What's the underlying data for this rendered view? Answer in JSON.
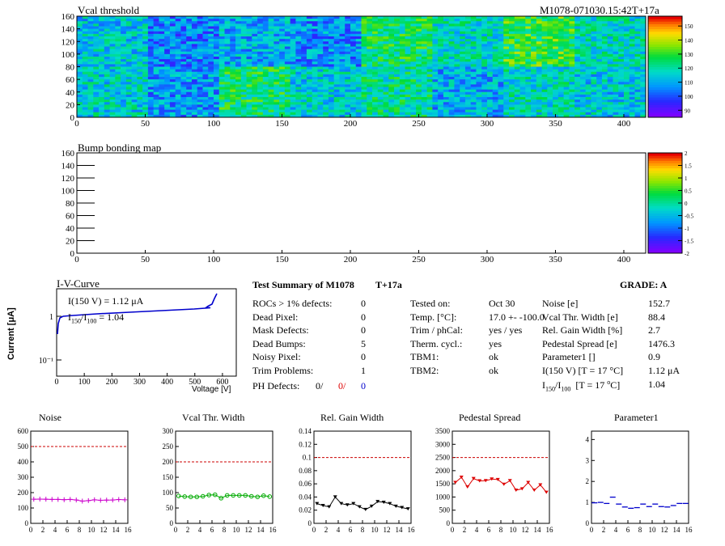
{
  "header": {
    "title": "Vcal threshold",
    "module_id": "M1078-071030.15:42T+17a"
  },
  "bump_title": "Bump bonding map",
  "vcal_map": {
    "x_ticks": [
      "0",
      "50",
      "100",
      "150",
      "200",
      "250",
      "300",
      "350",
      "400"
    ],
    "y_ticks": [
      "0",
      "20",
      "40",
      "60",
      "80",
      "100",
      "120",
      "140",
      "160"
    ],
    "colorbar_ticks": [
      "90",
      "100",
      "110",
      "120",
      "130",
      "140",
      "150"
    ],
    "xlim": [
      0,
      416
    ],
    "ylim": [
      0,
      160
    ]
  },
  "bump_map": {
    "x_ticks": [
      "0",
      "50",
      "100",
      "150",
      "200",
      "250",
      "300",
      "350",
      "400"
    ],
    "y_ticks": [
      "0",
      "20",
      "40",
      "60",
      "80",
      "100",
      "120",
      "140",
      "160"
    ],
    "colorbar_ticks": [
      "-2",
      "-1.5",
      "-1",
      "-0.5",
      "0",
      "0.5",
      "1",
      "1.5",
      "2"
    ]
  },
  "iv": {
    "title": "I-V-Curve",
    "ylabel": "Current [μA]",
    "xlabel": "Voltage [V]",
    "x_ticks": [
      "0",
      "100",
      "200",
      "300",
      "400",
      "500",
      "600"
    ],
    "y_ticks": [
      "10⁻¹",
      "1"
    ],
    "ann1": "I(150 V) = 1.12 μA",
    "ann2_a": "I",
    "ann2_sub1": "150",
    "ann2_b": "/I",
    "ann2_sub2": "100",
    "ann2_c": " =  1.04"
  },
  "summary": {
    "title": "Test Summary of M1078",
    "subtitle": "T+17a",
    "grade": "GRADE:  A",
    "left": [
      {
        "label": "ROCs > 1% defects:",
        "value": "0"
      },
      {
        "label": "Dead Pixel:",
        "value": "0"
      },
      {
        "label": "Mask Defects:",
        "value": "0"
      },
      {
        "label": "Dead Bumps:",
        "value": "5"
      },
      {
        "label": "Noisy Pixel:",
        "value": "0"
      },
      {
        "label": "Trim Problems:",
        "value": "1"
      }
    ],
    "ph_label": "PH Defects:",
    "ph_values": [
      "0/",
      "0/",
      "0"
    ],
    "mid": [
      {
        "label": "Tested on:",
        "value": "Oct 30"
      },
      {
        "label": "Temp. [°C]:",
        "value": "17.0 +- -100.0"
      },
      {
        "label": "Trim / phCal:",
        "value": "yes / yes"
      },
      {
        "label": "Therm. cycl.:",
        "value": "yes"
      },
      {
        "label": "TBM1:",
        "value": "ok"
      },
      {
        "label": "TBM2:",
        "value": "ok"
      }
    ],
    "right": [
      {
        "label": "Noise [e]",
        "value": "152.7"
      },
      {
        "label": "Vcal Thr. Width [e]",
        "value": "88.4"
      },
      {
        "label": "Rel. Gain Width [%]",
        "value": "2.7"
      },
      {
        "label": "Pedestal Spread [e]",
        "value": "1476.3"
      },
      {
        "label": "Parameter1 []",
        "value": "0.9"
      },
      {
        "label": "I(150 V) [T = 17 °C]",
        "value": "1.12 μA"
      }
    ],
    "ratio_label": "I150/I100  [T = 17 °C]",
    "ratio_value": "1.04"
  },
  "chart_data": [
    {
      "type": "line",
      "title": "Noise",
      "color": "#cc00cc",
      "marker": "plus",
      "ylim": [
        0,
        600
      ],
      "y_ticks": [
        "0",
        "100",
        "200",
        "300",
        "400",
        "500",
        "600"
      ],
      "limit": 500,
      "x": [
        0,
        1,
        2,
        3,
        4,
        5,
        6,
        7,
        8,
        9,
        10,
        11,
        12,
        13,
        14,
        15
      ],
      "values": [
        157,
        158,
        157,
        156,
        156,
        154,
        156,
        152,
        145,
        148,
        153,
        150,
        151,
        152,
        155,
        153
      ]
    },
    {
      "type": "line",
      "title": "Vcal Thr. Width",
      "color": "#00aa00",
      "marker": "circle",
      "ylim": [
        0,
        300
      ],
      "y_ticks": [
        "0",
        "50",
        "100",
        "150",
        "200",
        "250",
        "300"
      ],
      "limit": 200,
      "x": [
        0,
        1,
        2,
        3,
        4,
        5,
        6,
        7,
        8,
        9,
        10,
        11,
        12,
        13,
        14,
        15
      ],
      "values": [
        89,
        87,
        86,
        86,
        88,
        92,
        93,
        82,
        91,
        91,
        91,
        91,
        88,
        86,
        90,
        87
      ]
    },
    {
      "type": "line",
      "title": "Rel. Gain Width",
      "color": "#000000",
      "marker": "triangle",
      "ylim": [
        0,
        0.14
      ],
      "y_ticks": [
        "0",
        "0.02",
        "0.04",
        "0.06",
        "0.08",
        "0.1",
        "0.12",
        "0.14"
      ],
      "limit": 0.1,
      "x": [
        0,
        1,
        2,
        3,
        4,
        5,
        6,
        7,
        8,
        9,
        10,
        11,
        12,
        13,
        14,
        15
      ],
      "values": [
        0.03,
        0.027,
        0.025,
        0.04,
        0.03,
        0.028,
        0.03,
        0.025,
        0.021,
        0.026,
        0.033,
        0.032,
        0.03,
        0.026,
        0.024,
        0.022
      ]
    },
    {
      "type": "line",
      "title": "Pedestal Spread",
      "color": "#dd0000",
      "marker": "triangle",
      "ylim": [
        0,
        3500
      ],
      "y_ticks": [
        "0",
        "500",
        "1000",
        "1500",
        "2000",
        "2500",
        "3000",
        "3500"
      ],
      "limit": 2500,
      "x": [
        0,
        1,
        2,
        3,
        4,
        5,
        6,
        7,
        8,
        9,
        10,
        11,
        12,
        13,
        14,
        15
      ],
      "values": [
        1550,
        1750,
        1380,
        1700,
        1610,
        1620,
        1680,
        1660,
        1480,
        1620,
        1260,
        1310,
        1550,
        1260,
        1460,
        1180
      ]
    },
    {
      "type": "scatter",
      "title": "Parameter1",
      "color": "#0000cc",
      "marker": "dash",
      "ylim": [
        0,
        4.4
      ],
      "y_ticks": [
        "0",
        "1",
        "2",
        "3",
        "4"
      ],
      "x": [
        0,
        1,
        2,
        3,
        4,
        5,
        6,
        7,
        8,
        9,
        10,
        11,
        12,
        13,
        14,
        15
      ],
      "values": [
        0.98,
        1.0,
        0.95,
        1.25,
        0.92,
        0.78,
        0.72,
        0.75,
        0.92,
        0.8,
        0.92,
        0.8,
        0.78,
        0.85,
        0.95,
        0.95
      ]
    }
  ],
  "small_x_ticks": [
    "0",
    "2",
    "4",
    "6",
    "8",
    "10",
    "12",
    "14",
    "16"
  ]
}
